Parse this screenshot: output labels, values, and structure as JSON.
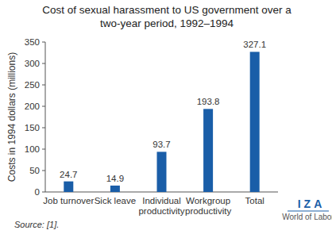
{
  "chart_data": {
    "type": "bar",
    "title": "Cost of sexual harassment to US government over a two-year period, 1992–1994",
    "y_label": "Costs in 1994 dollars (millions)",
    "categories": [
      "Job turnover",
      "Sick leave",
      "Individual productivity",
      "Workgroup productivity",
      "Total"
    ],
    "values": [
      24.7,
      14.9,
      93.7,
      193.8,
      327.1
    ],
    "color": "#1a5ea8",
    "ylim": [
      0,
      350
    ],
    "yticks": [
      0,
      50,
      100,
      150,
      200,
      250,
      300,
      350
    ],
    "grid": false,
    "data_labels": true
  },
  "source": "Source: [1].",
  "logo": {
    "name": "IZA",
    "tagline": "World of Labor"
  }
}
